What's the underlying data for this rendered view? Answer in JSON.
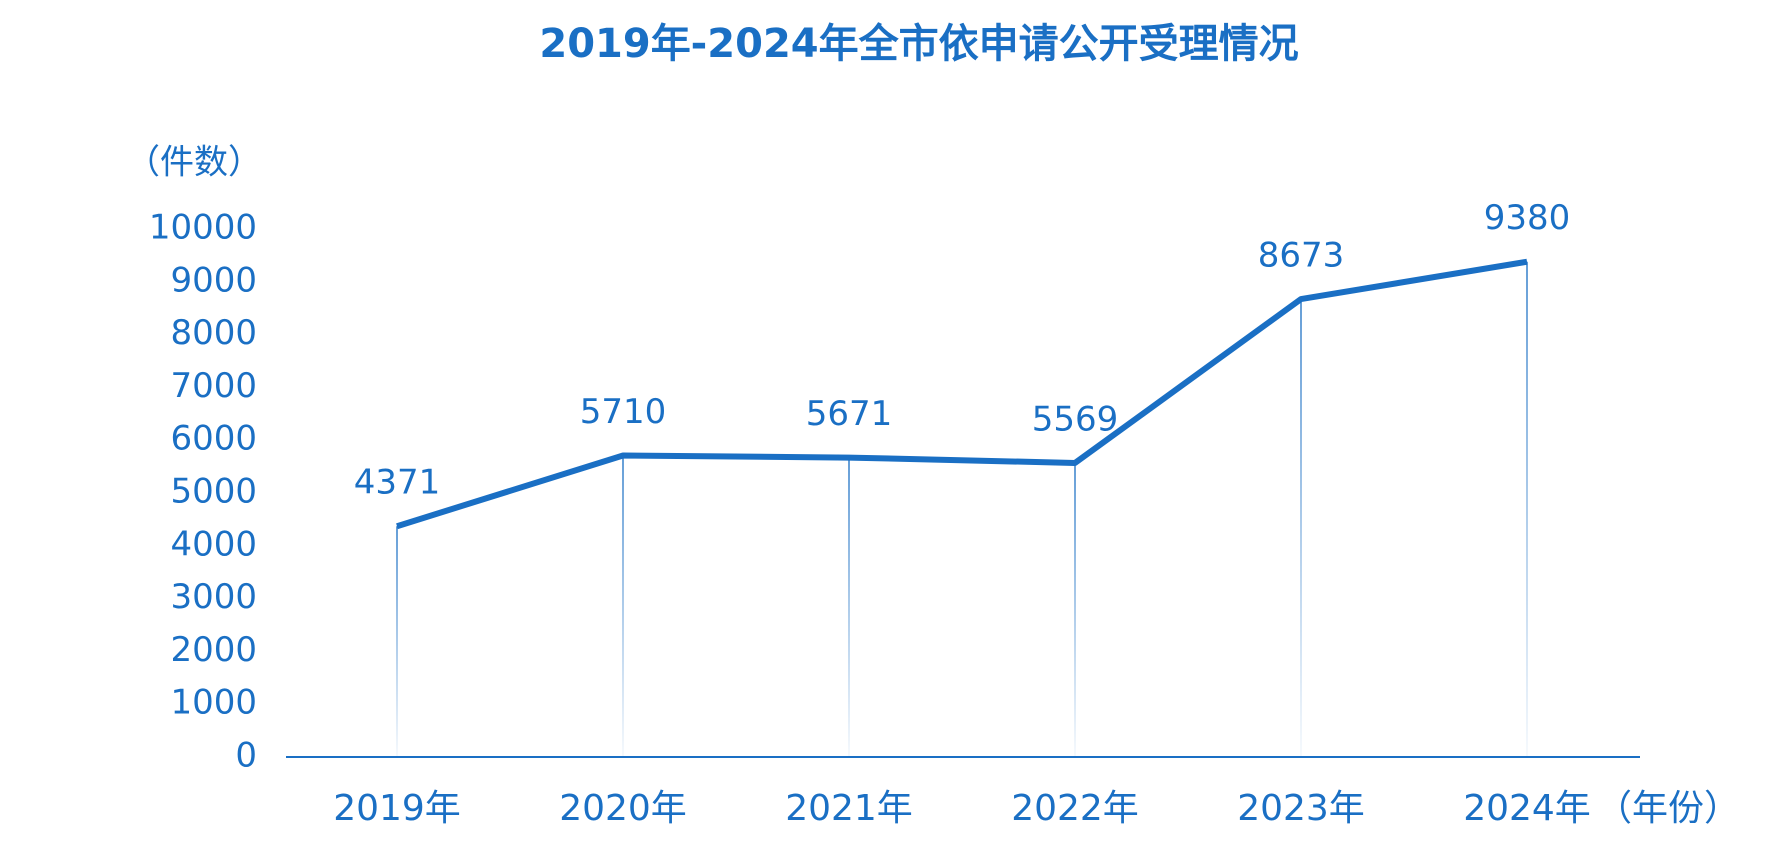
{
  "chart_data": {
    "type": "line",
    "title": "2019年-2024年全市依申请公开受理情况",
    "y_label": "（件数）",
    "x_label": "（年份）",
    "categories": [
      "2019年",
      "2020年",
      "2021年",
      "2022年",
      "2023年",
      "2024年"
    ],
    "values": [
      4371,
      5710,
      5671,
      5569,
      8673,
      9380
    ],
    "color": "#1a6fc4",
    "ylim": [
      0,
      10000
    ],
    "yticks": [
      0,
      1000,
      2000,
      3000,
      4000,
      5000,
      6000,
      7000,
      8000,
      9000,
      10000
    ],
    "grid": false
  }
}
